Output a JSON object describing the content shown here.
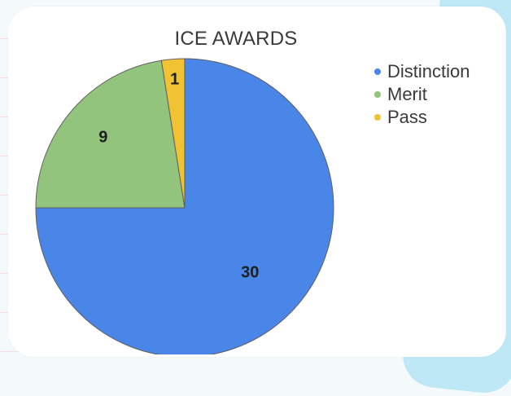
{
  "chart_data": {
    "type": "pie",
    "title": "ICE AWARDS",
    "categories": [
      "Distinction",
      "Merit",
      "Pass"
    ],
    "values": [
      30,
      9,
      1
    ],
    "data_labels": [
      "30",
      "9",
      "1"
    ],
    "colors": [
      "#4a86e8",
      "#93c47d",
      "#f1c232"
    ],
    "legend": {
      "placement": "right",
      "entries": [
        "Distinction",
        "Merit",
        "Pass"
      ]
    }
  },
  "colors": {
    "card_background": "#ffffff",
    "slice_stroke": "#5f5f5f"
  }
}
